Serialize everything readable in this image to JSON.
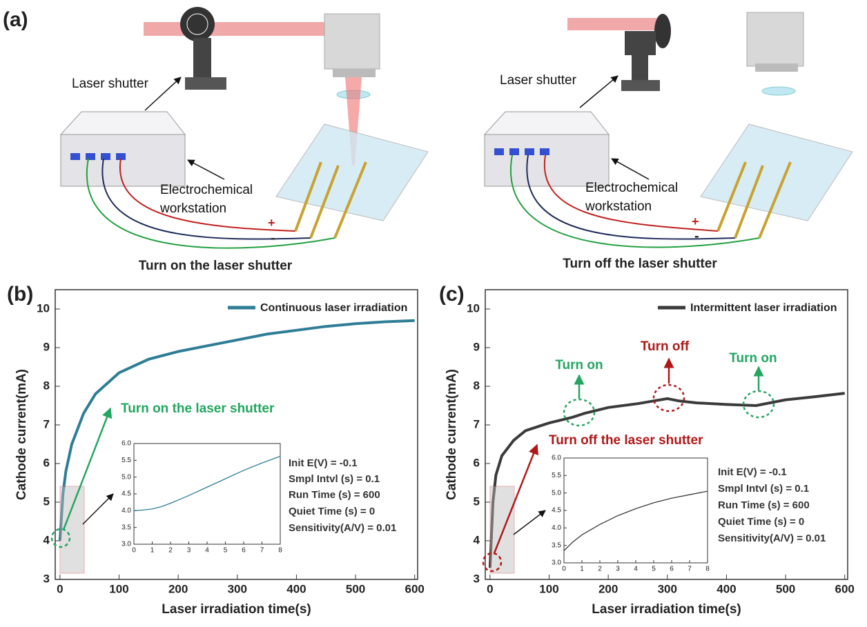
{
  "panel_labels": [
    "(a)",
    "(b)",
    "(c)"
  ],
  "diagram": {
    "panels": [
      {
        "shutter_label": "Laser shutter",
        "station_label": [
          "Electrochemical",
          "workstation"
        ],
        "plus": "+",
        "minus": "-",
        "caption": "Turn on the laser shutter"
      },
      {
        "shutter_label": "Laser shutter",
        "station_label": [
          "Electrochemical",
          "workstation"
        ],
        "plus": "+",
        "minus": "-",
        "caption": "Turn off the laser shutter"
      }
    ]
  },
  "chart_data": [
    {
      "type": "line",
      "xlabel": "Laser irradiation time(s)",
      "ylabel": "Cathode current(mA)",
      "xlim": [
        -8,
        605
      ],
      "xticks": [
        0,
        100,
        200,
        300,
        400,
        500,
        600
      ],
      "ylim": [
        3,
        10.5
      ],
      "yticks": [
        3,
        4,
        5,
        6,
        7,
        8,
        9,
        10
      ],
      "x": [
        0,
        5,
        10,
        20,
        40,
        60,
        100,
        150,
        200,
        250,
        300,
        350,
        400,
        450,
        500,
        550,
        600
      ],
      "series": [
        {
          "name": "Continuous laser irradiation",
          "color": "#2e7d96",
          "values": [
            4.0,
            5.2,
            5.8,
            6.5,
            7.3,
            7.8,
            8.35,
            8.7,
            8.9,
            9.05,
            9.2,
            9.35,
            9.45,
            9.55,
            9.62,
            9.67,
            9.7
          ]
        }
      ],
      "annotations": [
        "Turn on the laser shutter",
        "Init E(V) = -0.1",
        "Smpl Intvl (s) = 0.1",
        "Run Time (s) = 600",
        "Quiet Time (s) = 0",
        "Sensitivity(A/V) = 0.01"
      ]
    },
    {
      "type": "line",
      "xlim": [
        0,
        8
      ],
      "xticks": [
        0,
        1,
        2,
        3,
        4,
        5,
        6,
        7,
        8
      ],
      "ylim": [
        3,
        6
      ],
      "yticks": [
        {
          "value": 3,
          "label": "3.0"
        },
        3.5,
        {
          "value": 4,
          "label": "4.0"
        },
        4.5,
        {
          "value": 5,
          "label": "5.0"
        },
        5.5,
        {
          "value": 6,
          "label": "6.0"
        }
      ],
      "x": [
        0,
        0.5,
        1,
        1.5,
        2,
        3,
        4,
        5,
        6,
        7,
        8
      ],
      "series": [
        {
          "color": "#2e7d96",
          "values": [
            4.0,
            4.02,
            4.05,
            4.12,
            4.22,
            4.45,
            4.7,
            4.95,
            5.2,
            5.42,
            5.62
          ]
        }
      ]
    },
    {
      "type": "line",
      "xlabel": "Laser irradiation time(s)",
      "ylabel": "Cathode current(mA)",
      "xlim": [
        -8,
        605
      ],
      "xticks": [
        0,
        100,
        200,
        300,
        400,
        500,
        600
      ],
      "ylim": [
        3,
        10.5
      ],
      "yticks": [
        3,
        4,
        5,
        6,
        7,
        8,
        9,
        10
      ],
      "x": [
        0,
        5,
        10,
        20,
        40,
        60,
        100,
        140,
        150,
        160,
        200,
        250,
        300,
        320,
        350,
        400,
        450,
        500,
        550,
        600
      ],
      "series": [
        {
          "name": "Intermittent laser irradiation",
          "color": "#3a3a3a",
          "values": [
            3.3,
            5.0,
            5.7,
            6.2,
            6.6,
            6.85,
            7.05,
            7.2,
            7.25,
            7.3,
            7.45,
            7.55,
            7.68,
            7.62,
            7.57,
            7.53,
            7.5,
            7.65,
            7.73,
            7.82
          ]
        }
      ],
      "annotations": [
        "Turn on",
        "Turn off",
        "Turn on",
        "Turn off the laser shutter",
        "Init E(V) = -0.1",
        "Smpl Intvl (s) = 0.1",
        "Run Time (s) = 600",
        "Quiet Time (s) = 0",
        "Sensitivity(A/V) = 0.01"
      ]
    },
    {
      "type": "line",
      "xlim": [
        0,
        8
      ],
      "xticks": [
        0,
        1,
        2,
        3,
        4,
        5,
        6,
        7,
        8
      ],
      "ylim": [
        3,
        6
      ],
      "yticks": [
        {
          "value": 3,
          "label": "3.0"
        },
        3.5,
        {
          "value": 4,
          "label": "4.0"
        },
        4.5,
        {
          "value": 5,
          "label": "5.0"
        },
        5.5,
        {
          "value": 6,
          "label": "6.0"
        }
      ],
      "x": [
        0,
        0.5,
        1,
        2,
        3,
        4,
        5,
        6,
        7,
        8
      ],
      "series": [
        {
          "color": "#3a3a3a",
          "values": [
            3.35,
            3.6,
            3.8,
            4.1,
            4.35,
            4.55,
            4.72,
            4.85,
            4.95,
            5.05
          ]
        }
      ]
    }
  ]
}
